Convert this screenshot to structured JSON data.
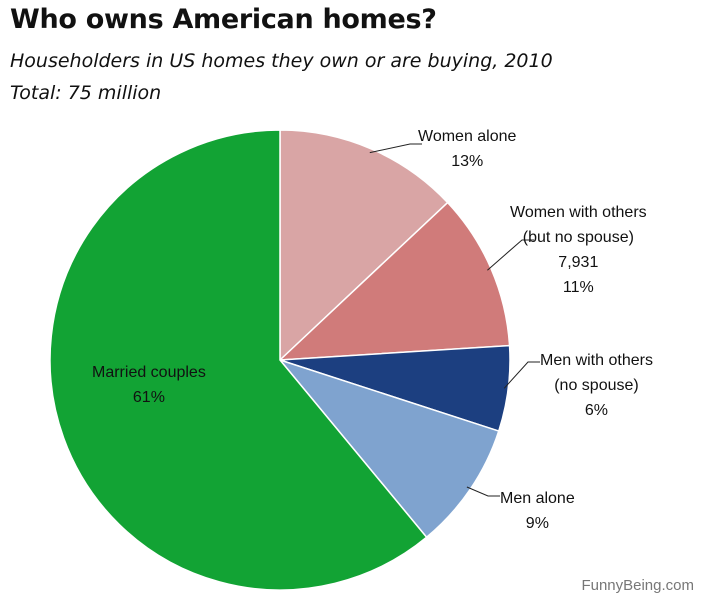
{
  "chart_data": {
    "type": "pie",
    "title": "Who owns American homes?",
    "subtitle": "Householders in US homes they own or are buying, 2010",
    "total_label": "Total: 75 million",
    "slices": [
      {
        "name": "Women alone",
        "lines": [
          "Women alone",
          "13%"
        ],
        "value": 13,
        "color": "#d9a5a5"
      },
      {
        "name": "Women with others (but no spouse)",
        "lines": [
          "Women with others",
          "(but no spouse)",
          "7,931",
          "11%"
        ],
        "value": 11,
        "color": "#d07b7a"
      },
      {
        "name": "Men with others (no spouse)",
        "lines": [
          "Men with others",
          "(no spouse)",
          "6%"
        ],
        "value": 6,
        "color": "#1c3f80"
      },
      {
        "name": "Men alone",
        "lines": [
          "Men alone",
          "9%"
        ],
        "value": 9,
        "color": "#7fa3cf"
      },
      {
        "name": "Married couples",
        "lines": [
          "Married couples",
          "61%"
        ],
        "value": 61,
        "color": "#12a334"
      }
    ]
  },
  "watermark": "FunnyBeing.com"
}
